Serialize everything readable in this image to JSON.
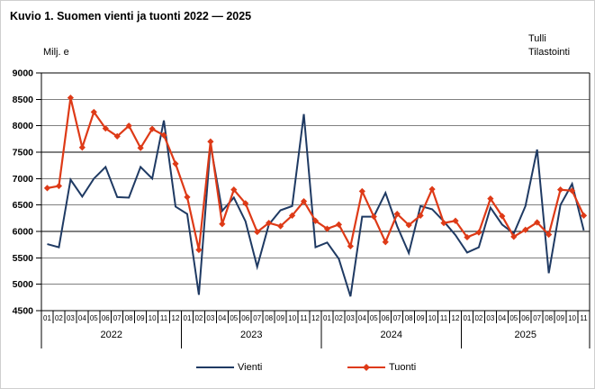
{
  "page": {
    "title": "Kuvio 1. Suomen vienti ja tuonti 2022 — 2025",
    "unit_label": "Milj. e",
    "source_line1": "Tulli",
    "source_line2": "Tilastointi"
  },
  "legend": {
    "vienti": "Vienti",
    "tuonti": "Tuonti"
  },
  "colors": {
    "vienti": "#1F3A63",
    "tuonti": "#DE3A17",
    "axis": "#000000",
    "background": "#FFFFFF"
  },
  "chart_data": {
    "type": "line",
    "title": "Kuvio 1. Suomen vienti ja tuonti 2022 — 2025",
    "ylabel": "Milj. e",
    "ylim": [
      4500,
      9000
    ],
    "ytick_step": 500,
    "grid": true,
    "legend_position": "bottom",
    "x_months": [
      "01",
      "02",
      "03",
      "04",
      "05",
      "06",
      "07",
      "08",
      "09",
      "10",
      "11",
      "12",
      "01",
      "02",
      "03",
      "04",
      "05",
      "06",
      "07",
      "08",
      "09",
      "10",
      "11",
      "12",
      "01",
      "02",
      "03",
      "04",
      "05",
      "06",
      "07",
      "08",
      "09",
      "10",
      "11",
      "12",
      "01",
      "02",
      "03",
      "04",
      "05",
      "06",
      "07",
      "08",
      "09",
      "10",
      "11"
    ],
    "x_years": [
      {
        "label": "2022",
        "months": 12
      },
      {
        "label": "2023",
        "months": 12
      },
      {
        "label": "2024",
        "months": 12
      },
      {
        "label": "2025",
        "months": 11
      }
    ],
    "series": [
      {
        "name": "Vienti",
        "color": "#1F3A63",
        "marker": "none",
        "values": [
          5760,
          5700,
          6980,
          6660,
          7000,
          7220,
          6650,
          6640,
          7220,
          7000,
          8100,
          6470,
          6330,
          4800,
          7640,
          6390,
          6640,
          6190,
          5330,
          6130,
          6400,
          6480,
          8220,
          5700,
          5790,
          5480,
          4770,
          6280,
          6280,
          6730,
          6100,
          5590,
          6480,
          6420,
          6190,
          5930,
          5600,
          5700,
          6450,
          6130,
          5960,
          6480,
          7550,
          5210,
          6500,
          6900,
          6020
        ]
      },
      {
        "name": "Tuonti",
        "color": "#DE3A17",
        "marker": "diamond",
        "values": [
          6820,
          6860,
          8530,
          7590,
          8260,
          7950,
          7800,
          8000,
          7580,
          7940,
          7820,
          7280,
          6650,
          5650,
          7700,
          6140,
          6790,
          6530,
          5990,
          6160,
          6100,
          6300,
          6570,
          6200,
          6050,
          6130,
          5720,
          6760,
          6280,
          5800,
          6330,
          6120,
          6300,
          6800,
          6160,
          6200,
          5890,
          5980,
          6620,
          6290,
          5900,
          6030,
          6170,
          5940,
          6790,
          6770,
          6300
        ]
      }
    ]
  }
}
